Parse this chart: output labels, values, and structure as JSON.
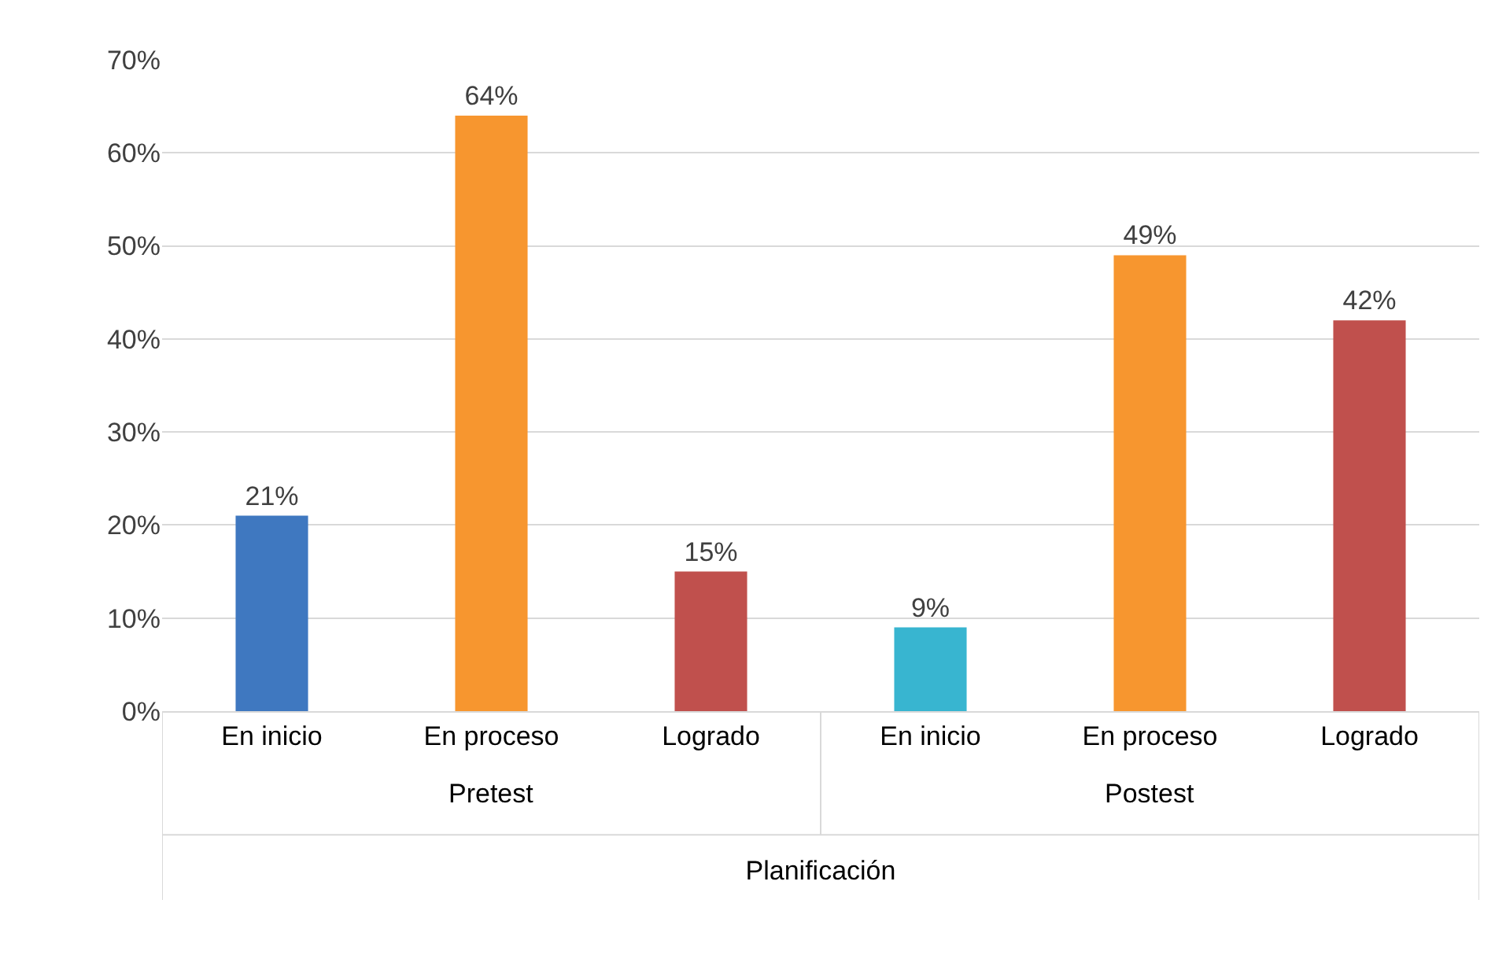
{
  "chart_data": {
    "type": "bar",
    "xlabel": "Planificación",
    "categories": [
      "En inicio",
      "En proceso",
      "Logrado",
      "En inicio",
      "En proceso",
      "Logrado"
    ],
    "values": [
      21,
      64,
      15,
      9,
      49,
      42
    ],
    "colors": [
      "#3f78c0",
      "#f7962f",
      "#c0504d",
      "#38b5d0",
      "#f7962f",
      "#c0504d"
    ],
    "value_labels": [
      "21%",
      "64%",
      "15%",
      "9%",
      "49%",
      "42%"
    ],
    "annotations": [
      "Pretest",
      "Postest"
    ],
    "ylim": [
      0,
      70
    ],
    "yticks": [
      {
        "value": 0,
        "label": "0%"
      },
      {
        "value": 10,
        "label": "10%"
      },
      {
        "value": 20,
        "label": "20%"
      },
      {
        "value": 30,
        "label": "30%"
      },
      {
        "value": 40,
        "label": "40%"
      },
      {
        "value": 50,
        "label": "50%"
      },
      {
        "value": 60,
        "label": "60%"
      },
      {
        "value": 70,
        "label": "70%"
      }
    ],
    "grid": "y"
  }
}
